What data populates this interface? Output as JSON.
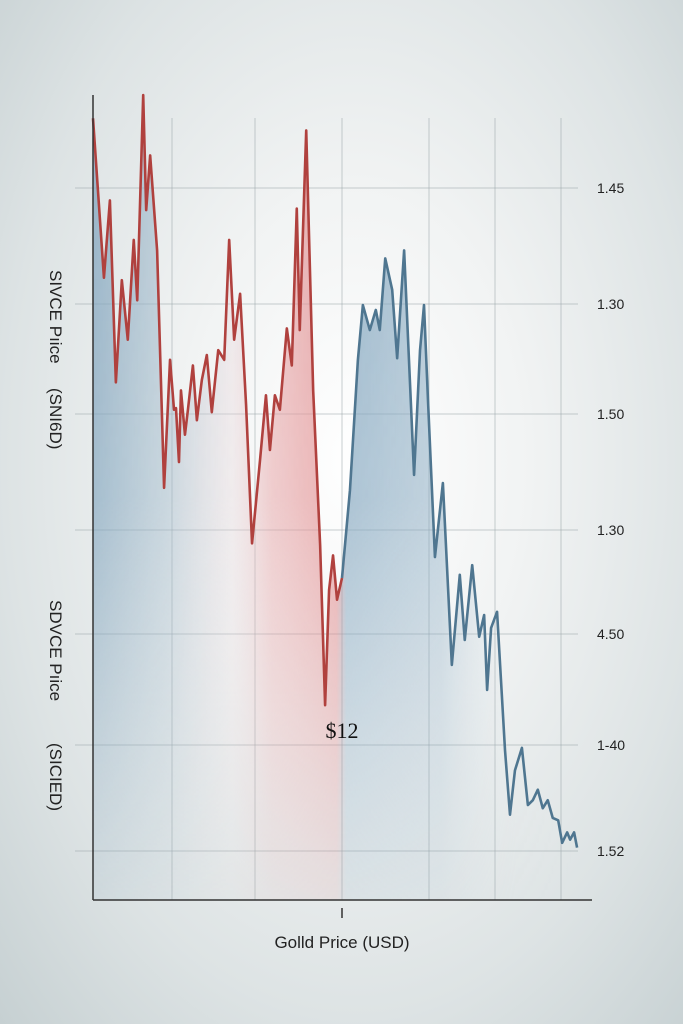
{
  "chart_data": {
    "type": "line",
    "title": "",
    "xlabel": "Golld Price (USD)",
    "ylabel_upper": [
      "SIVCE  Pıice",
      "(SNI6D)"
    ],
    "ylabel_lower": [
      "SDVCE  Pıice",
      "(SICIED)"
    ],
    "right_tick_labels": [
      "1.45",
      "1.30",
      "1.50",
      "1.30",
      "4.50",
      "1-40",
      "1.52"
    ],
    "annotation": "$12",
    "xlim": [
      0,
      100
    ],
    "ylim": [
      0,
      100
    ],
    "grid": true,
    "colors": {
      "red_line": "#b0413e",
      "blue_line": "#4f7690",
      "blue_fill": "#7fa3bd",
      "red_fill": "#e08a8c"
    },
    "series": [
      {
        "color": "red",
        "x": [
          0,
          2.2,
          3.4,
          4.6,
          5.8,
          7.0,
          8.2,
          8.9,
          10.1,
          10.7,
          11.5,
          12.9,
          14.3,
          15.5,
          16.3,
          16.7,
          17.3,
          17.7,
          18.5,
          19.1,
          20.1,
          20.9,
          21.9,
          22.9,
          23.9,
          25.2,
          26.4,
          27.4,
          28.4,
          29.6,
          30.8,
          32.0,
          33.6,
          34.8,
          35.6,
          36.6,
          37.6,
          39.0,
          40.0,
          41.0,
          41.6,
          42.9,
          44.3,
          45.7,
          46.7,
          47.5,
          48.3,
          49.1,
          50.1
        ],
        "y": [
          97.1,
          77.3,
          86.9,
          64.3,
          77.0,
          69.6,
          82.0,
          74.5,
          100,
          85.7,
          92.5,
          80.7,
          51.2,
          67.1,
          60.9,
          61.1,
          54.4,
          63.3,
          57.8,
          60.9,
          66.4,
          59.6,
          64.6,
          67.7,
          60.6,
          68.3,
          67.1,
          82.0,
          69.6,
          75.3,
          61.5,
          44.3,
          54.6,
          62.7,
          55.9,
          62.7,
          60.9,
          71.0,
          66.4,
          85.9,
          70.8,
          95.6,
          63.3,
          44.1,
          24.2,
          38.5,
          42.8,
          37.3,
          40.0
        ]
      },
      {
        "color": "blue",
        "x": [
          50.1,
          51.7,
          53.3,
          54.3,
          55.7,
          56.9,
          57.7,
          58.8,
          60.2,
          61.2,
          62.6,
          64.6,
          65.8,
          66.6,
          67.4,
          68.8,
          70.4,
          72.2,
          73.8,
          74.8,
          76.3,
          77.7,
          78.7,
          79.3,
          80.1,
          81.3,
          82.9,
          83.9,
          84.9,
          86.3,
          87.5,
          88.5,
          89.5,
          90.5,
          91.5,
          92.5,
          93.6,
          94.4,
          95.4,
          96.0,
          96.8,
          97.4
        ],
        "y": [
          40.0,
          50.9,
          67.1,
          73.9,
          70.8,
          73.3,
          70.8,
          79.7,
          75.8,
          67.3,
          80.7,
          52.8,
          68.3,
          73.9,
          62.1,
          42.6,
          51.8,
          29.2,
          40.4,
          32.3,
          41.6,
          32.7,
          35.4,
          26.1,
          33.8,
          35.8,
          18.6,
          10.6,
          16.1,
          18.9,
          11.8,
          12.4,
          13.7,
          11.4,
          12.4,
          10.2,
          9.9,
          7.1,
          8.4,
          7.5,
          8.4,
          6.5
        ]
      }
    ]
  }
}
